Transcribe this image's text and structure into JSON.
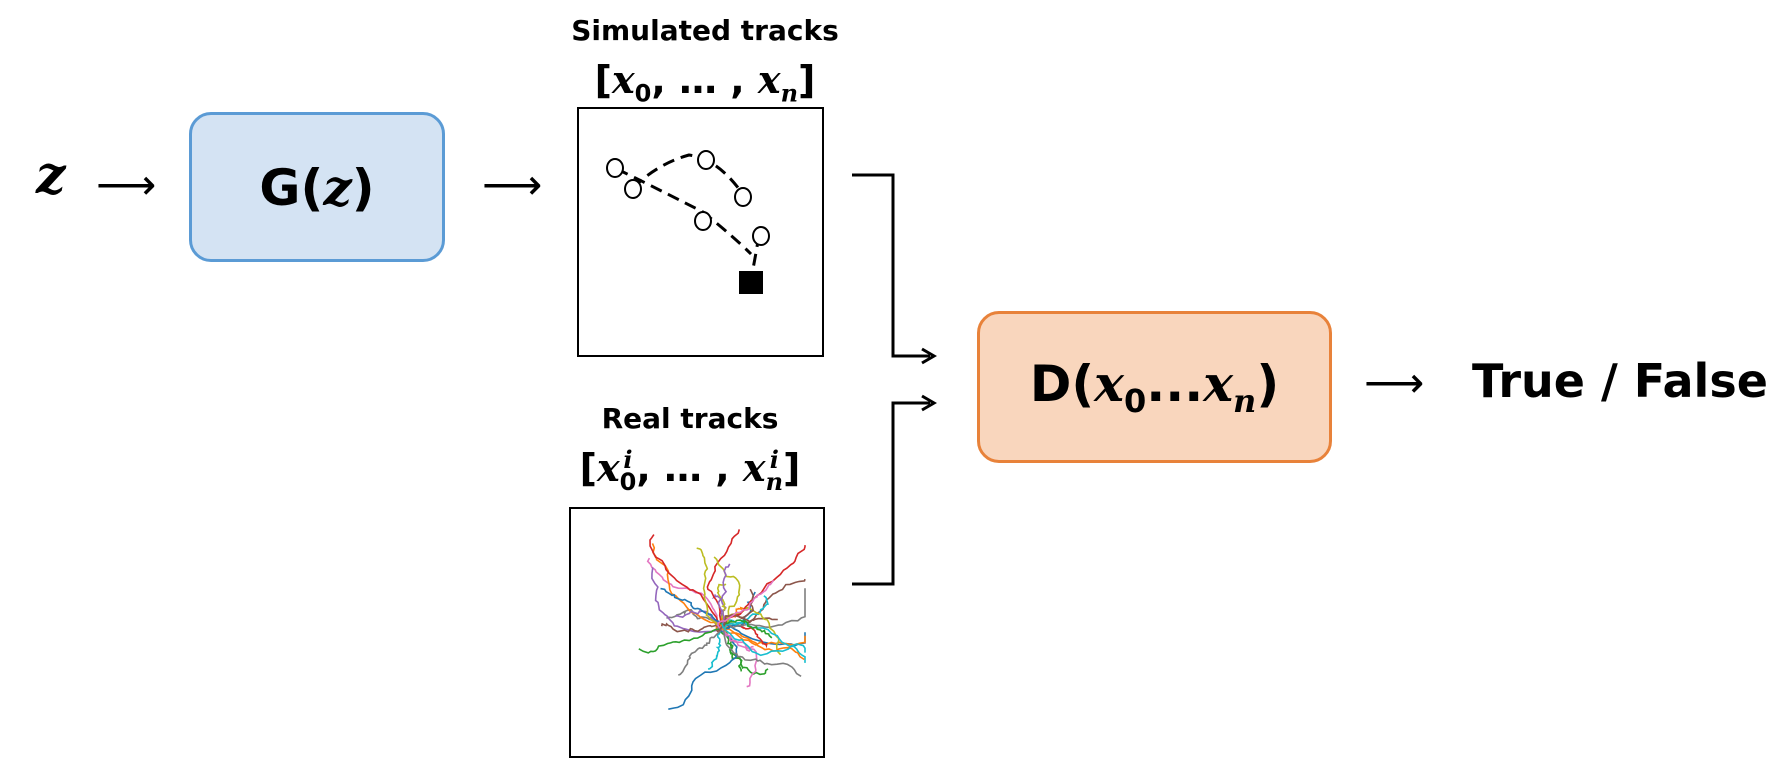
{
  "input": {
    "symbol": "z"
  },
  "arrows": {
    "glyph": "⟶"
  },
  "generator": {
    "label_prefix": "G(",
    "label_var": "z",
    "label_suffix": ")",
    "fill": "#d4e3f3",
    "border": "#5b9bd5"
  },
  "simulated": {
    "title": "Simulated tracks",
    "seq_open": "[",
    "seq_first": "x",
    "seq_first_sub": "0",
    "seq_mid": ", … , ",
    "seq_last": "x",
    "seq_last_sub": "n",
    "seq_close": "]"
  },
  "real": {
    "title": "Real tracks",
    "seq_open": "[",
    "seq_first": "x",
    "seq_first_sub": "0",
    "seq_first_sup": "i",
    "seq_mid": ", … , ",
    "seq_last": "x",
    "seq_last_sub": "n",
    "seq_last_sup": "i",
    "seq_close": "]"
  },
  "discriminator": {
    "label_prefix": "D(",
    "label_first": "x",
    "label_first_sub": "0",
    "label_mid": "...",
    "label_last": "x",
    "label_last_sub": "n",
    "label_suffix": ")",
    "fill": "#f9d6bd",
    "border": "#e8823a"
  },
  "output": {
    "label": "True / False"
  },
  "track_colors": [
    "#1f77b4",
    "#ff7f0e",
    "#2ca02c",
    "#d62728",
    "#9467bd",
    "#8c564b",
    "#e377c2",
    "#7f7f7f",
    "#bcbd22",
    "#17becf"
  ]
}
